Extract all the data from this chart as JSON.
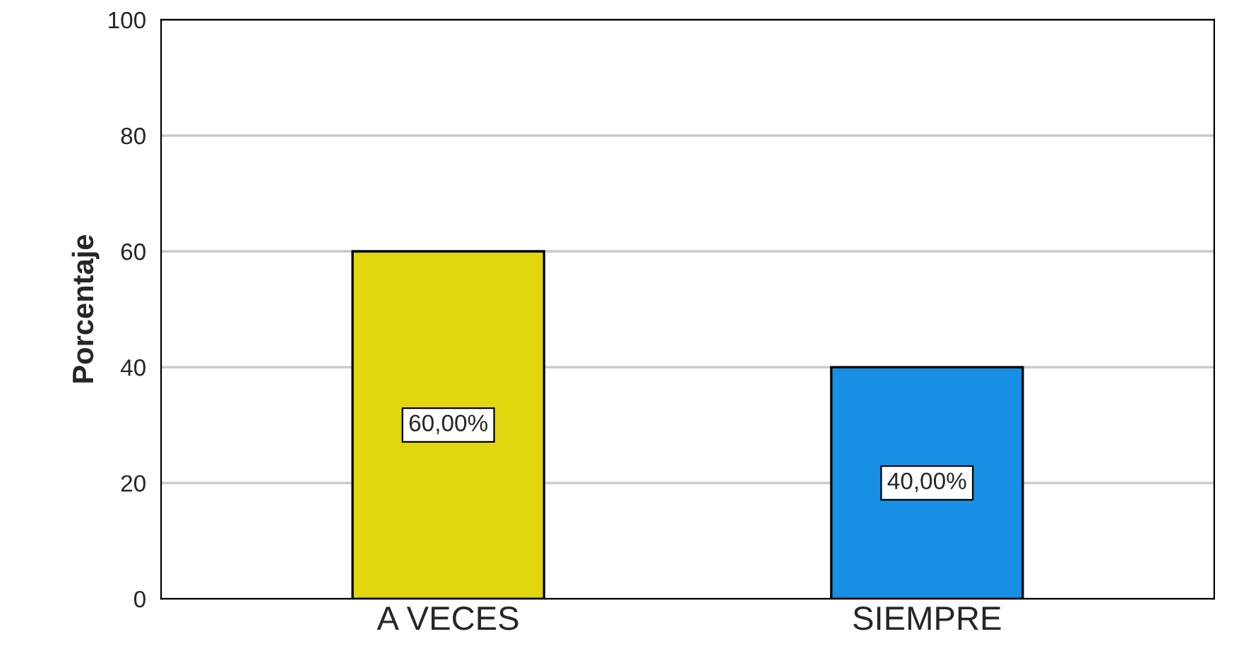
{
  "chart_data": {
    "type": "bar",
    "ylabel": "Porcentaje",
    "categories": [
      "A VECES",
      "SIEMPRE"
    ],
    "values": [
      60,
      40
    ],
    "colors": [
      "#e2d60f",
      "#168fe4"
    ],
    "value_labels": [
      "60,00%",
      "40,00%"
    ],
    "ylim": [
      0,
      100
    ],
    "yticks": [
      0,
      20,
      40,
      60,
      80,
      100
    ],
    "grid": "y"
  }
}
